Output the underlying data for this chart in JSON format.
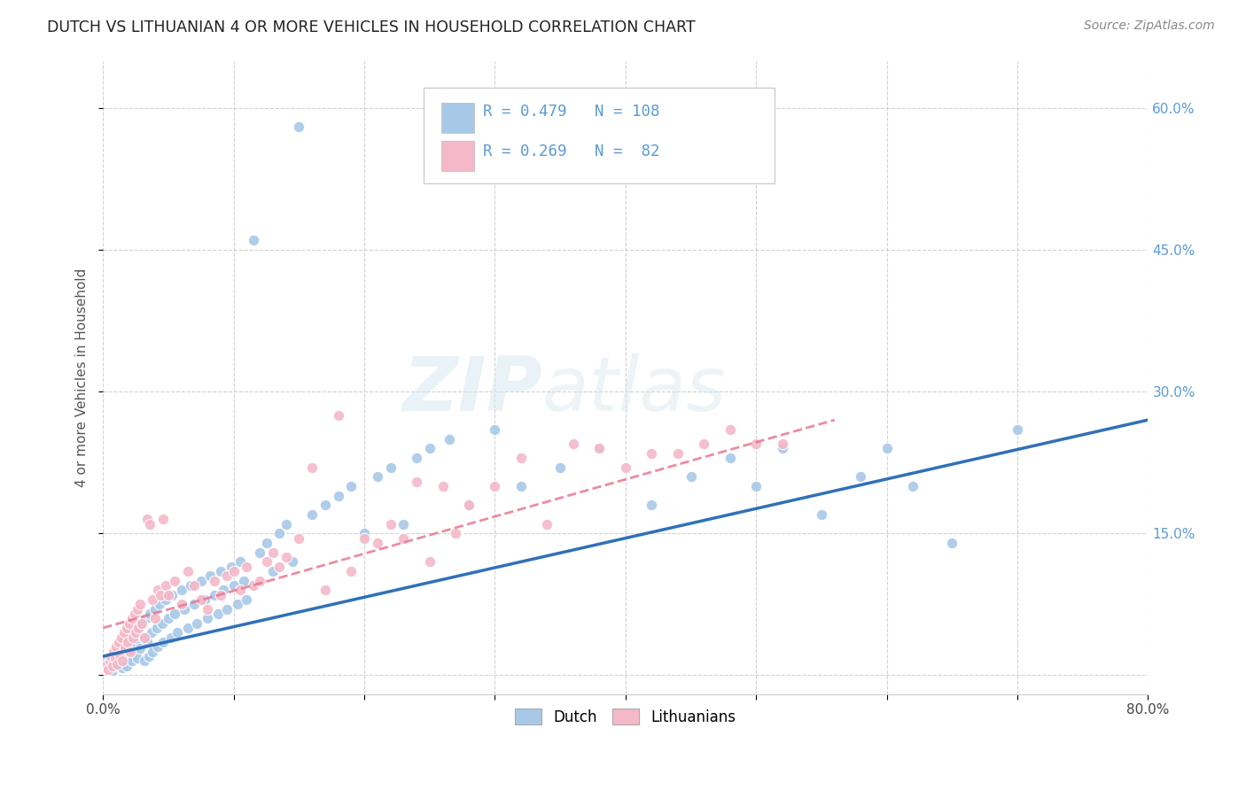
{
  "title": "DUTCH VS LITHUANIAN 4 OR MORE VEHICLES IN HOUSEHOLD CORRELATION CHART",
  "source": "Source: ZipAtlas.com",
  "ylabel": "4 or more Vehicles in Household",
  "xlim": [
    0.0,
    0.8
  ],
  "ylim": [
    -0.02,
    0.65
  ],
  "x_ticks": [
    0.0,
    0.1,
    0.2,
    0.3,
    0.4,
    0.5,
    0.6,
    0.7,
    0.8
  ],
  "y_ticks": [
    0.0,
    0.15,
    0.3,
    0.45,
    0.6
  ],
  "dutch_R": 0.479,
  "dutch_N": 108,
  "lith_R": 0.269,
  "lith_N": 82,
  "dutch_color": "#a8c8e8",
  "lith_color": "#f4b8c8",
  "dutch_line_color": "#3070b8",
  "lith_line_color": "#e87890",
  "background_color": "#ffffff",
  "grid_color": "#cccccc",
  "legend_entry1": "Dutch",
  "legend_entry2": "Lithuanians",
  "dutch_x": [
    0.002,
    0.003,
    0.004,
    0.005,
    0.006,
    0.007,
    0.008,
    0.009,
    0.01,
    0.01,
    0.011,
    0.012,
    0.013,
    0.013,
    0.014,
    0.015,
    0.015,
    0.016,
    0.017,
    0.018,
    0.019,
    0.02,
    0.021,
    0.022,
    0.022,
    0.023,
    0.024,
    0.025,
    0.026,
    0.027,
    0.028,
    0.03,
    0.031,
    0.032,
    0.033,
    0.034,
    0.035,
    0.036,
    0.037,
    0.038,
    0.04,
    0.041,
    0.042,
    0.043,
    0.045,
    0.046,
    0.048,
    0.05,
    0.052,
    0.053,
    0.055,
    0.057,
    0.06,
    0.062,
    0.065,
    0.067,
    0.07,
    0.072,
    0.075,
    0.078,
    0.08,
    0.082,
    0.085,
    0.088,
    0.09,
    0.092,
    0.095,
    0.098,
    0.1,
    0.103,
    0.105,
    0.108,
    0.11,
    0.115,
    0.12,
    0.125,
    0.13,
    0.135,
    0.14,
    0.145,
    0.15,
    0.16,
    0.17,
    0.18,
    0.19,
    0.2,
    0.21,
    0.22,
    0.23,
    0.24,
    0.25,
    0.265,
    0.28,
    0.3,
    0.32,
    0.35,
    0.38,
    0.42,
    0.45,
    0.48,
    0.5,
    0.52,
    0.55,
    0.58,
    0.6,
    0.62,
    0.65,
    0.7
  ],
  "dutch_y": [
    0.01,
    0.015,
    0.008,
    0.012,
    0.018,
    0.005,
    0.02,
    0.015,
    0.01,
    0.022,
    0.018,
    0.025,
    0.012,
    0.03,
    0.02,
    0.008,
    0.035,
    0.015,
    0.025,
    0.01,
    0.04,
    0.02,
    0.03,
    0.015,
    0.045,
    0.025,
    0.035,
    0.05,
    0.018,
    0.038,
    0.028,
    0.055,
    0.04,
    0.015,
    0.06,
    0.035,
    0.02,
    0.065,
    0.045,
    0.025,
    0.07,
    0.05,
    0.03,
    0.075,
    0.055,
    0.035,
    0.08,
    0.06,
    0.04,
    0.085,
    0.065,
    0.045,
    0.09,
    0.07,
    0.05,
    0.095,
    0.075,
    0.055,
    0.1,
    0.08,
    0.06,
    0.105,
    0.085,
    0.065,
    0.11,
    0.09,
    0.07,
    0.115,
    0.095,
    0.075,
    0.12,
    0.1,
    0.08,
    0.46,
    0.13,
    0.14,
    0.11,
    0.15,
    0.16,
    0.12,
    0.58,
    0.17,
    0.18,
    0.19,
    0.2,
    0.15,
    0.21,
    0.22,
    0.16,
    0.23,
    0.24,
    0.25,
    0.18,
    0.26,
    0.2,
    0.22,
    0.24,
    0.18,
    0.21,
    0.23,
    0.2,
    0.24,
    0.17,
    0.21,
    0.24,
    0.2,
    0.14,
    0.26
  ],
  "lith_x": [
    0.002,
    0.003,
    0.004,
    0.005,
    0.006,
    0.007,
    0.008,
    0.009,
    0.01,
    0.011,
    0.012,
    0.013,
    0.014,
    0.015,
    0.016,
    0.017,
    0.018,
    0.019,
    0.02,
    0.021,
    0.022,
    0.023,
    0.024,
    0.025,
    0.026,
    0.027,
    0.028,
    0.03,
    0.032,
    0.034,
    0.036,
    0.038,
    0.04,
    0.042,
    0.044,
    0.046,
    0.048,
    0.05,
    0.055,
    0.06,
    0.065,
    0.07,
    0.075,
    0.08,
    0.085,
    0.09,
    0.095,
    0.1,
    0.105,
    0.11,
    0.115,
    0.12,
    0.125,
    0.13,
    0.135,
    0.14,
    0.15,
    0.16,
    0.17,
    0.18,
    0.19,
    0.2,
    0.21,
    0.22,
    0.23,
    0.24,
    0.25,
    0.26,
    0.27,
    0.28,
    0.3,
    0.32,
    0.34,
    0.36,
    0.38,
    0.4,
    0.42,
    0.44,
    0.46,
    0.48,
    0.5,
    0.52
  ],
  "lith_y": [
    0.008,
    0.012,
    0.006,
    0.015,
    0.02,
    0.01,
    0.025,
    0.018,
    0.03,
    0.012,
    0.035,
    0.022,
    0.04,
    0.015,
    0.045,
    0.028,
    0.05,
    0.035,
    0.055,
    0.025,
    0.06,
    0.04,
    0.065,
    0.045,
    0.07,
    0.05,
    0.075,
    0.055,
    0.04,
    0.165,
    0.16,
    0.08,
    0.06,
    0.09,
    0.085,
    0.165,
    0.095,
    0.085,
    0.1,
    0.075,
    0.11,
    0.095,
    0.08,
    0.07,
    0.1,
    0.085,
    0.105,
    0.11,
    0.09,
    0.115,
    0.095,
    0.1,
    0.12,
    0.13,
    0.115,
    0.125,
    0.145,
    0.22,
    0.09,
    0.275,
    0.11,
    0.145,
    0.14,
    0.16,
    0.145,
    0.205,
    0.12,
    0.2,
    0.15,
    0.18,
    0.2,
    0.23,
    0.16,
    0.245,
    0.24,
    0.22,
    0.235,
    0.235,
    0.245,
    0.26,
    0.245,
    0.245
  ],
  "dutch_line_x": [
    0.0,
    0.8
  ],
  "dutch_line_y": [
    0.02,
    0.27
  ],
  "lith_line_x": [
    0.0,
    0.56
  ],
  "lith_line_y": [
    0.05,
    0.27
  ]
}
